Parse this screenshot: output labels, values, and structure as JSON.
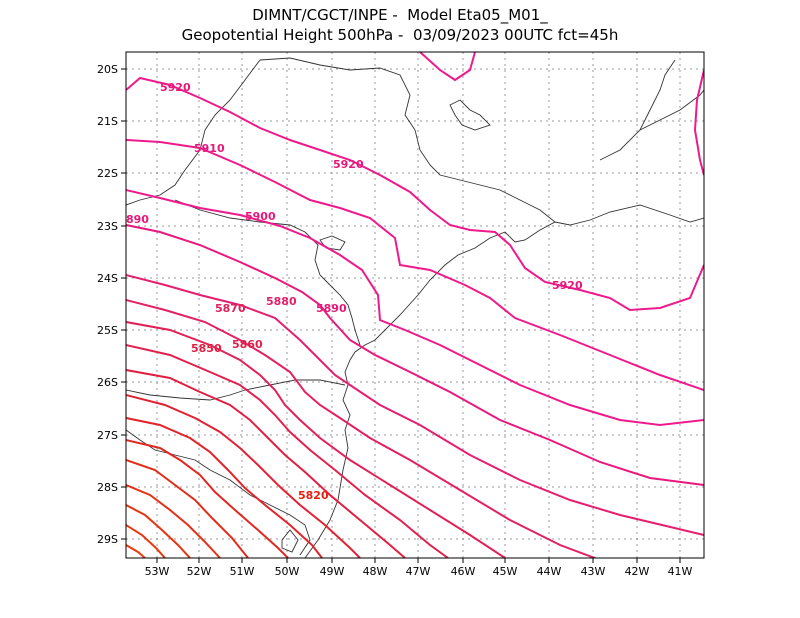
{
  "title_line1": "DIMNT/CGCT/INPE -  Model Eta05_M01_",
  "title_line2": "Geopotential Height 500hPa -  03/09/2023 00UTC fct=45h",
  "lon_ticks": [
    "53W",
    "52W",
    "51W",
    "50W",
    "49W",
    "48W",
    "47W",
    "46W",
    "45W",
    "44W",
    "43W",
    "42W",
    "41W"
  ],
  "lat_ticks": [
    "20S",
    "21S",
    "22S",
    "23S",
    "24S",
    "25S",
    "26S",
    "27S",
    "28S",
    "29S"
  ],
  "contour_labels": [
    {
      "text": "5920",
      "color": "#e6177a"
    },
    {
      "text": "5910",
      "color": "#e6177a"
    },
    {
      "text": "5920",
      "color": "#e6177a"
    },
    {
      "text": "5900",
      "color": "#e6177a"
    },
    {
      "text": "890",
      "color": "#e6177a"
    },
    {
      "text": "5880",
      "color": "#e0206a"
    },
    {
      "text": "5890",
      "color": "#e6177a"
    },
    {
      "text": "5870",
      "color": "#e0205a"
    },
    {
      "text": "5860",
      "color": "#e0204a"
    },
    {
      "text": "5850",
      "color": "#e02040"
    },
    {
      "text": "5820",
      "color": "#e82010"
    },
    {
      "text": "5920",
      "color": "#e6177a"
    }
  ]
}
